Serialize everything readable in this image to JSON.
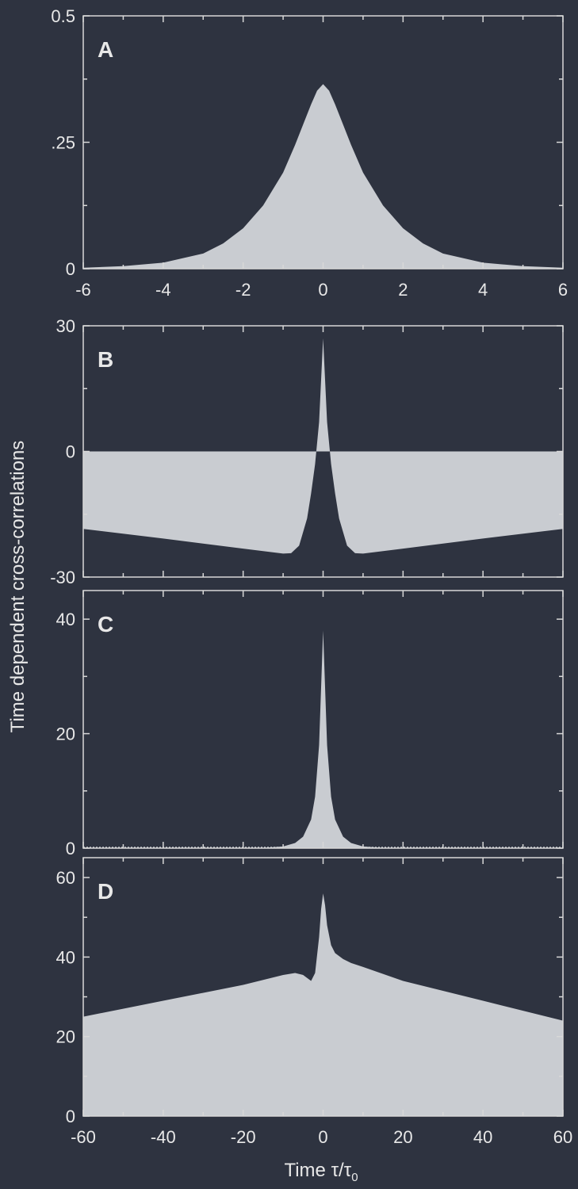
{
  "chart_data": [
    {
      "type": "area",
      "panel": "A",
      "xlim": [
        -6,
        6
      ],
      "ylim": [
        0,
        0.5
      ],
      "xticks": [
        -6,
        -4,
        -2,
        0,
        2,
        4,
        6
      ],
      "yticks": [
        0,
        0.25,
        0.5
      ],
      "ytick_labels": [
        "0",
        ".25",
        "0.5"
      ],
      "xtick_labels": [
        "-6",
        "-4",
        "-2",
        "0",
        "2",
        "4",
        "6"
      ],
      "series": [
        {
          "x": [
            -6,
            -5,
            -4,
            -3,
            -2.5,
            -2,
            -1.5,
            -1,
            -0.7,
            -0.5,
            -0.3,
            -0.15,
            0,
            0.15,
            0.3,
            0.5,
            0.7,
            1,
            1.5,
            2,
            2.5,
            3,
            4,
            5,
            6
          ],
          "y": [
            0.002,
            0.005,
            0.012,
            0.03,
            0.05,
            0.08,
            0.125,
            0.19,
            0.245,
            0.285,
            0.325,
            0.352,
            0.365,
            0.352,
            0.325,
            0.285,
            0.245,
            0.19,
            0.125,
            0.08,
            0.05,
            0.03,
            0.012,
            0.005,
            0.002
          ]
        }
      ]
    },
    {
      "type": "area",
      "panel": "B",
      "xlim": [
        -60,
        60
      ],
      "ylim": [
        -30,
        30
      ],
      "yticks": [
        -30,
        0,
        30
      ],
      "ytick_labels": [
        "-30",
        "0",
        "30"
      ],
      "series": [
        {
          "x": [
            -60,
            -40,
            -20,
            -10,
            -8,
            -6,
            -4,
            -3,
            -2,
            -1,
            -0.5,
            0,
            0.5,
            1,
            2,
            3,
            4,
            6,
            8,
            10,
            20,
            40,
            60
          ],
          "y": [
            -18.5,
            -20.8,
            -23.2,
            -24.4,
            -24.3,
            -22.5,
            -16,
            -10,
            -3,
            7,
            17,
            27,
            17,
            7,
            -3,
            -10,
            -16,
            -22.5,
            -24.3,
            -24.4,
            -23.2,
            -20.8,
            -18.5
          ]
        }
      ]
    },
    {
      "type": "area",
      "panel": "C",
      "xlim": [
        -60,
        60
      ],
      "ylim": [
        0,
        45
      ],
      "yticks": [
        0,
        20,
        40
      ],
      "ytick_labels": [
        "0",
        "20",
        "40"
      ],
      "series": [
        {
          "x": [
            -60,
            -15,
            -10,
            -7,
            -5,
            -3,
            -2,
            -1,
            -0.5,
            0,
            0.5,
            1,
            2,
            3,
            5,
            7,
            10,
            15,
            60
          ],
          "y": [
            0,
            0.05,
            0.3,
            0.9,
            2,
            5,
            9,
            18,
            28,
            38,
            28,
            18,
            9,
            5,
            2,
            0.9,
            0.3,
            0.05,
            0
          ]
        }
      ]
    },
    {
      "type": "area",
      "panel": "D",
      "xlim": [
        -60,
        60
      ],
      "ylim": [
        0,
        65
      ],
      "xticks": [
        -60,
        -40,
        -20,
        0,
        20,
        40,
        60
      ],
      "yticks": [
        0,
        20,
        40,
        60
      ],
      "ytick_labels": [
        "0",
        "20",
        "40",
        "60"
      ],
      "xtick_labels": [
        "-60",
        "-40",
        "-20",
        "0",
        "20",
        "40",
        "60"
      ],
      "xlabel": "Time τ/τ",
      "xlabel_sub": "0",
      "series": [
        {
          "x": [
            -60,
            -40,
            -20,
            -10,
            -7,
            -5,
            -3,
            -2,
            -1,
            -0.5,
            0,
            0.5,
            1,
            2,
            3,
            5,
            7,
            10,
            20,
            40,
            60
          ],
          "y": [
            25,
            29,
            33,
            35.5,
            36,
            35.5,
            34,
            36,
            45,
            52,
            56,
            53,
            48,
            43,
            41,
            39.5,
            38.5,
            37.5,
            34,
            29,
            24
          ]
        }
      ]
    }
  ],
  "ylabel": "Time dependent cross-correlations"
}
